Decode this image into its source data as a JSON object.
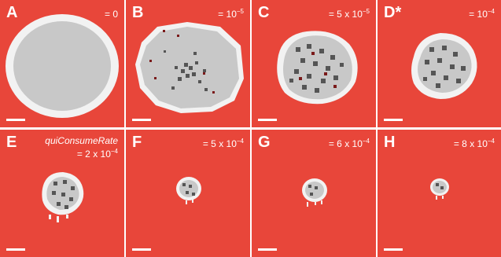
{
  "figure": {
    "background_color": "#e8463a",
    "colony_outer_color": "#f2f2f2",
    "colony_inner_color": "#c8c8c8",
    "dark_cell_color": "#555555",
    "red_cell_color": "#7a1a1a",
    "panels": [
      {
        "letter": "A",
        "value_prefix": "= 0",
        "value_exp": "",
        "parameter": ""
      },
      {
        "letter": "B",
        "value_prefix": "= 10",
        "value_exp": "−5",
        "parameter": ""
      },
      {
        "letter": "C",
        "value_prefix": "= 5 x 10",
        "value_exp": "−5",
        "parameter": ""
      },
      {
        "letter": "D*",
        "value_prefix": "= 10",
        "value_exp": "−4",
        "parameter": ""
      },
      {
        "letter": "E",
        "value_prefix": "= 2 x 10",
        "value_exp": "−4",
        "parameter": "quiConsumeRate"
      },
      {
        "letter": "F",
        "value_prefix": "= 5 x 10",
        "value_exp": "−4",
        "parameter": ""
      },
      {
        "letter": "G",
        "value_prefix": "= 6 x 10",
        "value_exp": "−4",
        "parameter": ""
      },
      {
        "letter": "H",
        "value_prefix": "= 8 x 10",
        "value_exp": "−4",
        "parameter": ""
      }
    ]
  }
}
